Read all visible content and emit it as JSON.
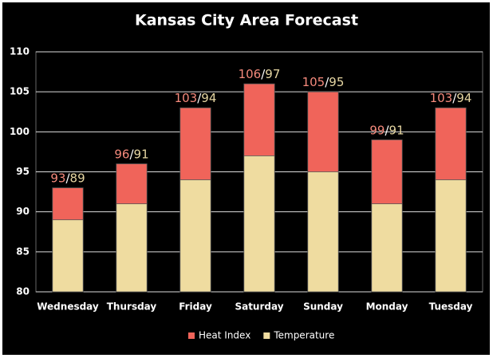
{
  "chart_data": {
    "type": "bar",
    "title": "Kansas City Area Forecast",
    "categories": [
      "Wednesday",
      "Thursday",
      "Friday",
      "Saturday",
      "Sunday",
      "Monday",
      "Tuesday"
    ],
    "series": [
      {
        "name": "Heat Index",
        "color": "#f0645a",
        "label_color": "#f58a7c",
        "values": [
          93,
          96,
          103,
          106,
          105,
          99,
          103
        ]
      },
      {
        "name": "Temperature",
        "color": "#efdca0",
        "label_color": "#e6d6a2",
        "values": [
          89,
          91,
          94,
          97,
          95,
          91,
          94
        ]
      }
    ],
    "value_separator": "/",
    "ylim": [
      80,
      110
    ],
    "yticks": [
      80,
      85,
      90,
      95,
      100,
      105,
      110
    ],
    "grid": true,
    "legend": "bottom"
  }
}
